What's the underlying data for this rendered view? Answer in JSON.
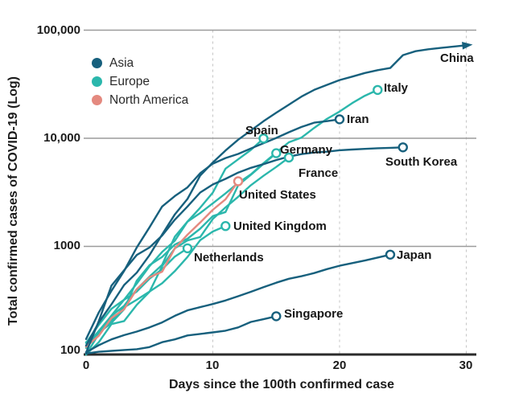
{
  "chart_data": {
    "type": "line",
    "title": "",
    "xlabel": "Days since the 100th confirmed case",
    "ylabel": "Total confirmed cases of COVID-19 (Log)",
    "y_scale": "log",
    "xlim": [
      0,
      30
    ],
    "ylim": [
      100,
      100000
    ],
    "xticks": [
      "0",
      "10",
      "20",
      "30"
    ],
    "yticks": [
      "100,000",
      "10,000",
      "1000",
      "100"
    ],
    "hgrid_values": [
      100000,
      10000,
      1000
    ],
    "vgrid_days": [
      10,
      20,
      30
    ],
    "grid": {
      "horizontal": "solid",
      "vertical": "dashed"
    },
    "colors": {
      "Asia": "#17607D",
      "Europe": "#2BB7AC",
      "North America": "#E4897F",
      "axis": "#2B2B2B",
      "hgrid": "#9B9B9B",
      "vgrid": "#C5C5C5",
      "label_text": "#161616"
    },
    "legend": {
      "position": "top-left",
      "items": [
        {
          "label": "Asia",
          "color": "#17607D"
        },
        {
          "label": "Europe",
          "color": "#2BB7AC"
        },
        {
          "label": "North America",
          "color": "#E4897F"
        }
      ]
    },
    "series": [
      {
        "id": "netherlands",
        "label": "Netherlands",
        "region": "Europe",
        "end_marker": "circle",
        "cases": [
          128,
          188,
          265,
          321,
          382,
          503,
          614,
          804,
          959
        ]
      },
      {
        "id": "united_kingdom",
        "label": "United Kingdom",
        "region": "Europe",
        "end_marker": "circle",
        "cases": [
          115,
          163,
          206,
          273,
          321,
          382,
          456,
          590,
          798,
          1140,
          1372,
          1543
        ]
      },
      {
        "id": "france",
        "label": "France",
        "region": "Europe",
        "end_marker": "circle",
        "cases": [
          100,
          130,
          191,
          204,
          288,
          380,
          656,
          959,
          1136,
          1219,
          1794,
          2293,
          2876,
          3681,
          4499,
          5423,
          6633
        ]
      },
      {
        "id": "germany",
        "label": "Germany",
        "region": "Europe",
        "end_marker": "circle",
        "cases": [
          130,
          159,
          196,
          262,
          482,
          670,
          799,
          1040,
          1176,
          1457,
          1908,
          2078,
          3675,
          4585,
          5795,
          7272
        ]
      },
      {
        "id": "spain",
        "label": "Spain",
        "region": "Europe",
        "end_marker": "circle",
        "cases": [
          120,
          165,
          228,
          282,
          401,
          525,
          674,
          1231,
          1695,
          2277,
          3146,
          5232,
          6391,
          7798,
          9942
        ]
      },
      {
        "id": "italy",
        "label": "Italy",
        "region": "Europe",
        "end_marker": "circle",
        "cases": [
          100,
          155,
          229,
          322,
          453,
          655,
          888,
          1128,
          1694,
          2036,
          2502,
          3089,
          3858,
          4636,
          5883,
          7375,
          9172,
          10149,
          12462,
          15113,
          17660,
          21157,
          24747,
          27980
        ]
      },
      {
        "id": "united_states",
        "label": "United States",
        "region": "North America",
        "end_marker": "circle",
        "cases": [
          118,
          149,
          217,
          262,
          402,
          518,
          583,
          959,
          1281,
          1663,
          2179,
          2727,
          4000
        ]
      },
      {
        "id": "singapore",
        "label": "Singapore",
        "region": "Asia",
        "end_marker": "circle",
        "cases": [
          102,
          106,
          108,
          110,
          112,
          117,
          130,
          138,
          150,
          155,
          160,
          166,
          178,
          200,
          212,
          226
        ]
      },
      {
        "id": "japan",
        "label": "Japan",
        "region": "Asia",
        "end_marker": "circle",
        "cases": [
          105,
          122,
          138,
          151,
          163,
          178,
          198,
          228,
          256,
          274,
          293,
          316,
          346,
          380,
          420,
          461,
          502,
          530,
          566,
          616,
          662,
          701,
          740,
          788,
          839
        ]
      },
      {
        "id": "iran",
        "label": "Iran",
        "region": "Asia",
        "end_marker": "circle",
        "cases": [
          139,
          245,
          388,
          593,
          978,
          1501,
          2336,
          2922,
          3513,
          4747,
          5823,
          6566,
          7161,
          8042,
          9000,
          10075,
          11364,
          12729,
          13938,
          14400,
          14991
        ]
      },
      {
        "id": "south_korea",
        "label": "South Korea",
        "region": "Asia",
        "end_marker": "circle",
        "cases": [
          104,
          204,
          433,
          602,
          833,
          977,
          1261,
          1766,
          2337,
          3150,
          3736,
          4212,
          4812,
          5328,
          5766,
          6284,
          6767,
          7134,
          7382,
          7513,
          7755,
          7869,
          7979,
          8086,
          8162,
          8236
        ]
      },
      {
        "id": "china",
        "label": "China",
        "region": "Asia",
        "end_marker": "arrow",
        "cases": [
          121,
          198,
          291,
          440,
          571,
          830,
          1287,
          1975,
          2744,
          4515,
          5974,
          7711,
          9692,
          11791,
          14380,
          17205,
          20438,
          24324,
          28018,
          31161,
          34546,
          37198,
          40171,
          42638,
          44653,
          58761,
          63851,
          66492,
          68500,
          70548,
          72436
        ]
      }
    ]
  }
}
